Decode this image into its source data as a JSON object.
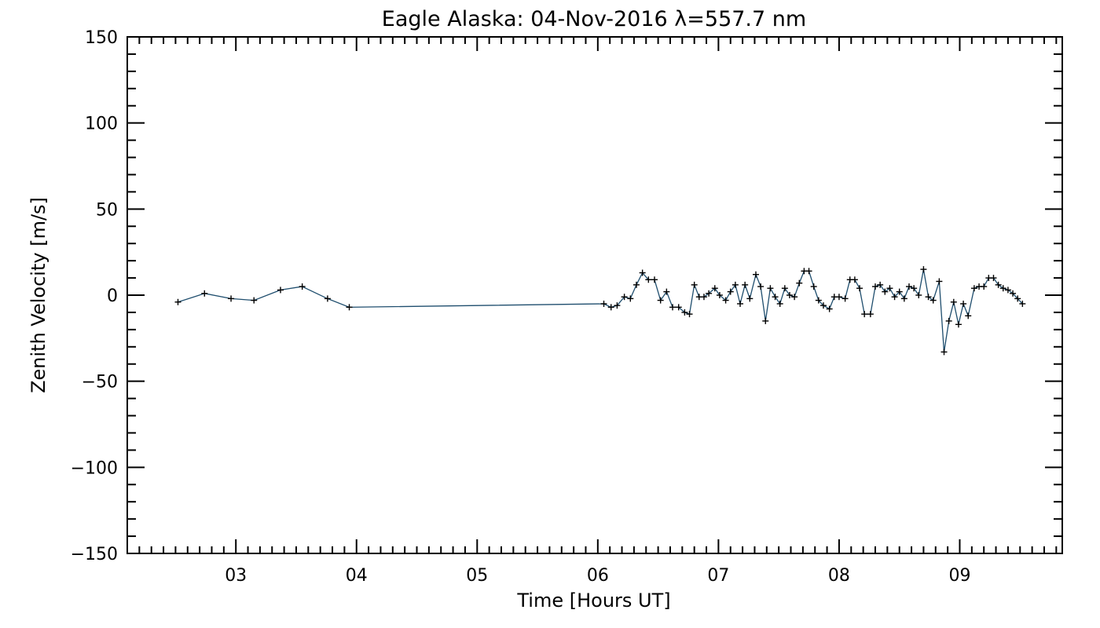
{
  "chart_data": {
    "type": "line",
    "title": "Eagle Alaska: 04-Nov-2016 λ=557.7 nm",
    "xlabel": "Time [Hours UT]",
    "ylabel": "Zenith Velocity [m/s]",
    "xlim": [
      2.1,
      9.85
    ],
    "ylim": [
      -150,
      150
    ],
    "xticks": [
      {
        "value": 3,
        "label": "03"
      },
      {
        "value": 4,
        "label": "04"
      },
      {
        "value": 5,
        "label": "05"
      },
      {
        "value": 6,
        "label": "06"
      },
      {
        "value": 7,
        "label": "07"
      },
      {
        "value": 8,
        "label": "08"
      },
      {
        "value": 9,
        "label": "09"
      }
    ],
    "yticks": [
      {
        "value": 150,
        "label": "150"
      },
      {
        "value": 100,
        "label": "100"
      },
      {
        "value": 50,
        "label": "50"
      },
      {
        "value": 0,
        "label": "0"
      },
      {
        "value": -50,
        "label": "−50"
      },
      {
        "value": -100,
        "label": "−100"
      },
      {
        "value": -150,
        "label": "−150"
      }
    ],
    "grid": false,
    "line_color": "#1f4e6e",
    "marker_color": "#000000",
    "marker": "plus",
    "series": [
      {
        "x": [
          2.52,
          2.74,
          2.96,
          3.15,
          3.37,
          3.55,
          3.76,
          3.94,
          6.05,
          6.11,
          6.16,
          6.22,
          6.27,
          6.32,
          6.37,
          6.42,
          6.47,
          6.52,
          6.57,
          6.62,
          6.67,
          6.72,
          6.76,
          6.8,
          6.84,
          6.88,
          6.92,
          6.97,
          7.01,
          7.06,
          7.1,
          7.14,
          7.18,
          7.22,
          7.26,
          7.31,
          7.35,
          7.39,
          7.43,
          7.47,
          7.51,
          7.55,
          7.59,
          7.63,
          7.67,
          7.71,
          7.75,
          7.79,
          7.83,
          7.87,
          7.92,
          7.96,
          8.0,
          8.05,
          8.09,
          8.13,
          8.17,
          8.21,
          8.26,
          8.3,
          8.34,
          8.38,
          8.42,
          8.46,
          8.5,
          8.54,
          8.58,
          8.62,
          8.66,
          8.7,
          8.74,
          8.78,
          8.83,
          8.87,
          8.91,
          8.95,
          8.99,
          9.03,
          9.07,
          9.12,
          9.16,
          9.2,
          9.24,
          9.28,
          9.32,
          9.36,
          9.4,
          9.44,
          9.48,
          9.52
        ],
        "y": [
          -4,
          1,
          -2,
          -3,
          3,
          5,
          -2,
          -7,
          -5,
          -7,
          -6,
          -1,
          -2,
          6,
          13,
          9,
          9,
          -3,
          2,
          -7,
          -7,
          -10,
          -11,
          6,
          -1,
          -1,
          1,
          4,
          0,
          -3,
          2,
          6,
          -5,
          6,
          -2,
          12,
          5,
          -15,
          4,
          -1,
          -5,
          4,
          0,
          -1,
          7,
          14,
          14,
          5,
          -3,
          -6,
          -8,
          -1,
          -1,
          -2,
          9,
          9,
          4,
          -11,
          -11,
          5,
          6,
          2,
          4,
          -1,
          2,
          -2,
          5,
          4,
          0,
          15,
          -1,
          -3,
          8,
          -33,
          -15,
          -4,
          -17,
          -5,
          -12,
          4,
          5,
          5,
          10,
          10,
          6,
          4,
          3,
          1,
          -2,
          -5
        ]
      }
    ]
  }
}
